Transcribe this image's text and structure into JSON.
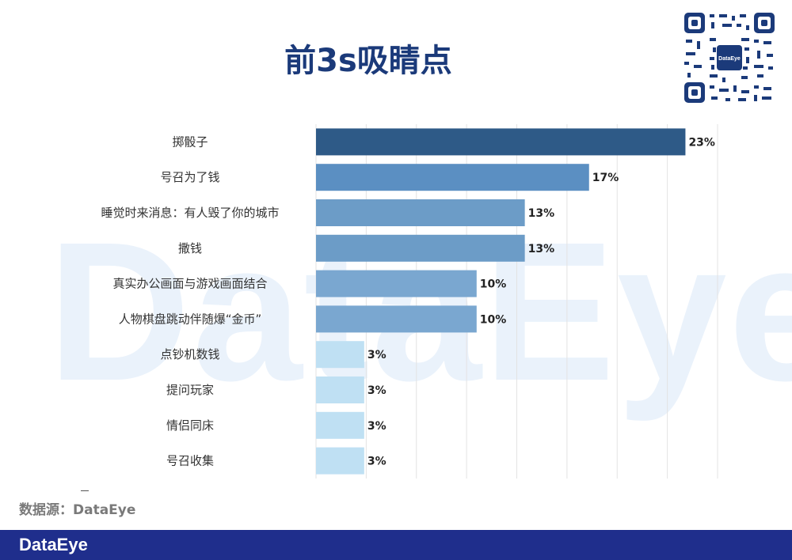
{
  "watermark": "DataEye",
  "title": "前3s吸睛点",
  "qr_badge": "DataEye",
  "source": "数据源：DataEye",
  "footer_logo": "DataEye",
  "colors": {
    "dark": "#2e5a87",
    "mid": "#5b8fc2",
    "light": "#bfe0f3",
    "title": "#1b3a7a",
    "footer": "#1f2e8c"
  },
  "chart_data": {
    "type": "bar",
    "orientation": "horizontal",
    "title": "前3s吸睛点",
    "categories": [
      "掷骰子",
      "号召为了钱",
      "睡觉时来消息：有人毁了你的城市",
      "撒钱",
      "真实办公画面与游戏画面结合",
      "人物棋盘跳动伴随爆“金币”",
      "点钞机数钱",
      "提问玩家",
      "情侣同床",
      "号召收集"
    ],
    "values": [
      23,
      17,
      13,
      13,
      10,
      10,
      3,
      3,
      3,
      3
    ],
    "value_labels": [
      "23%",
      "17%",
      "13%",
      "13%",
      "10%",
      "10%",
      "3%",
      "3%",
      "3%",
      "3%"
    ],
    "bar_colors": [
      "#2e5a87",
      "#5b8fc2",
      "#6c9cc7",
      "#6c9cc7",
      "#7aa7d0",
      "#7aa7d0",
      "#bfe0f3",
      "#bfe0f3",
      "#bfe0f3",
      "#bfe0f3"
    ],
    "xlim": [
      0,
      25
    ],
    "grid": true,
    "legend": "none"
  }
}
